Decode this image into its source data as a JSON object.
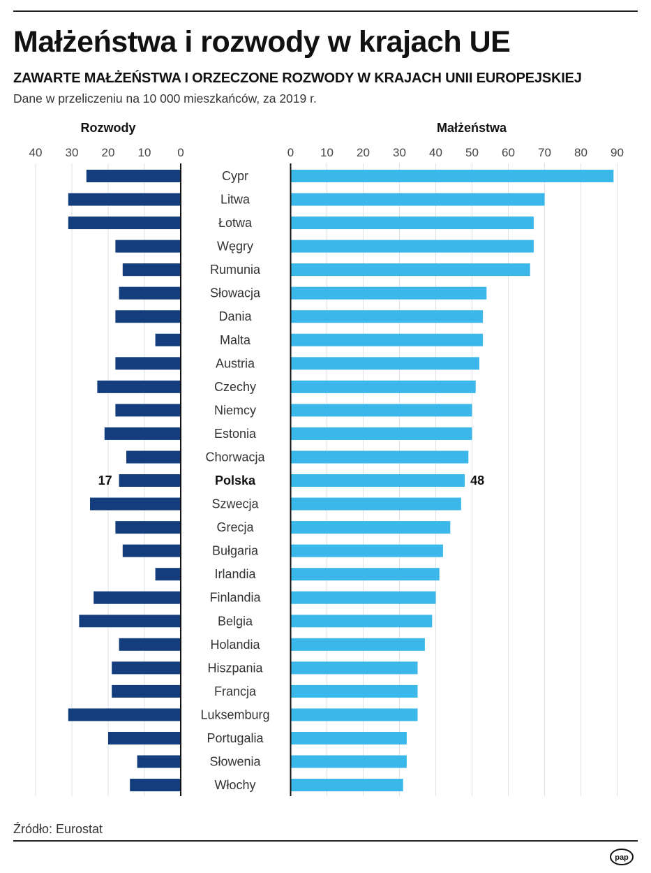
{
  "header": {
    "title": "Małżeństwa i rozwody w krajach UE",
    "subtitle": "ZAWARTE MAŁŻEŃSTWA I ORZECZONE ROZWODY W KRAJACH UNII EUROPEJSKIEJ",
    "note": "Dane w przeliczeniu na 10 000 mieszkańców, za 2019 r."
  },
  "footer": {
    "source": "Źródło: Eurostat",
    "logo": "pap"
  },
  "colors": {
    "divorces": "#133d7c",
    "marriages": "#3bb7e9",
    "grid": "#dde3e6",
    "axis": "#111111"
  },
  "chart_data": {
    "type": "bar",
    "orientation": "horizontal-butterfly",
    "title": "ZAWARTE MAŁŻEŃSTWA I ORZECZONE ROZWODY W KRAJACH UNII EUROPEJSKIEJ",
    "categories": [
      "Cypr",
      "Litwa",
      "Łotwa",
      "Węgry",
      "Rumunia",
      "Słowacja",
      "Dania",
      "Malta",
      "Austria",
      "Czechy",
      "Niemcy",
      "Estonia",
      "Chorwacja",
      "Polska",
      "Szwecja",
      "Grecja",
      "Bułgaria",
      "Irlandia",
      "Finlandia",
      "Belgia",
      "Holandia",
      "Hiszpania",
      "Francja",
      "Luksemburg",
      "Portugalia",
      "Słowenia",
      "Włochy"
    ],
    "highlight": "Polska",
    "series": [
      {
        "name": "Rozwody",
        "side": "left",
        "values": [
          26,
          31,
          31,
          18,
          16,
          17,
          18,
          7,
          18,
          23,
          18,
          21,
          15,
          17,
          25,
          18,
          16,
          7,
          24,
          28,
          17,
          19,
          19,
          31,
          20,
          12,
          14
        ],
        "xlim": [
          0,
          40
        ],
        "ticks": [
          40,
          30,
          20,
          10,
          0
        ],
        "highlight_label": "17"
      },
      {
        "name": "Małżeństwa",
        "side": "right",
        "values": [
          89,
          70,
          67,
          67,
          66,
          54,
          53,
          53,
          52,
          51,
          50,
          50,
          49,
          48,
          47,
          44,
          42,
          41,
          40,
          39,
          37,
          35,
          35,
          35,
          32,
          32,
          31
        ],
        "xlim": [
          0,
          90
        ],
        "ticks": [
          0,
          10,
          20,
          30,
          40,
          50,
          60,
          70,
          80,
          90
        ],
        "highlight_label": "48"
      }
    ],
    "grid": true,
    "legend": "panel titles above each side",
    "xlabel": "",
    "ylabel": ""
  }
}
